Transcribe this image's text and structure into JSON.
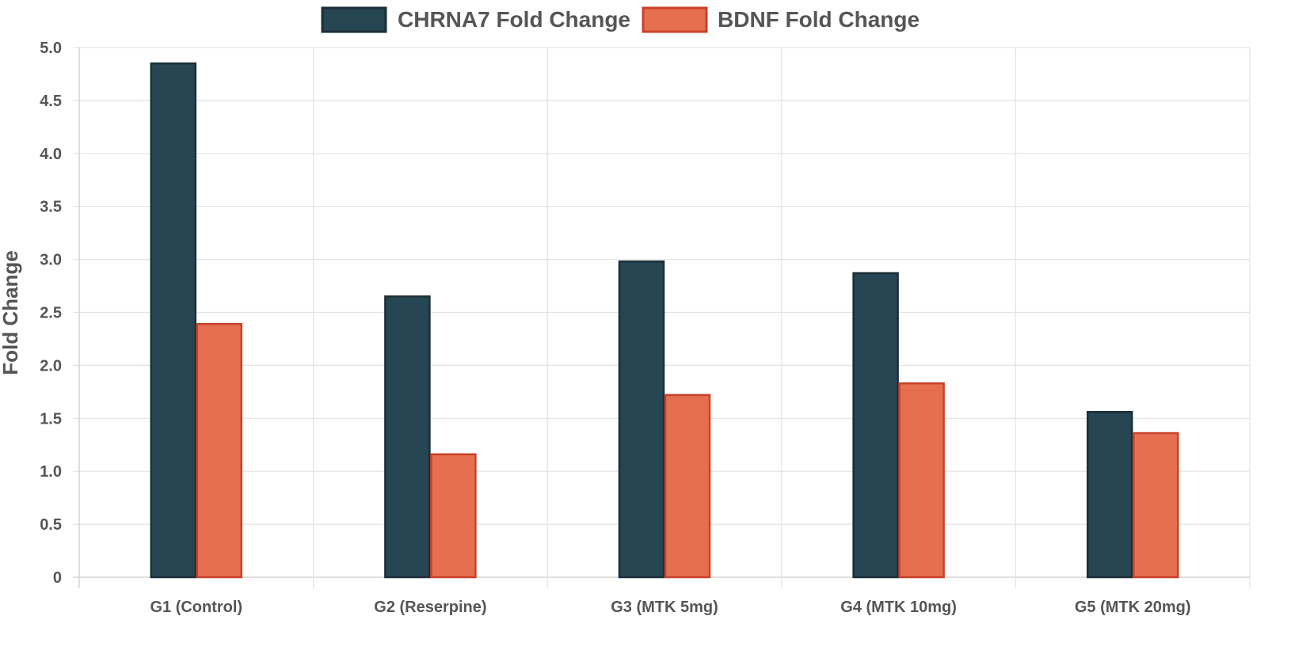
{
  "chart_data": {
    "type": "bar",
    "title": "",
    "xlabel": "",
    "ylabel": "Fold Change",
    "ylim": [
      0,
      5
    ],
    "yticks": [
      "0",
      "0.5",
      "1.0",
      "1.5",
      "2.0",
      "2.5",
      "3.0",
      "3.5",
      "4.0",
      "4.5",
      "5.0"
    ],
    "grid": true,
    "legend_position": "top-center",
    "categories": [
      "G1 (Control)",
      "G2 (Reserpine)",
      "G3 (MTK 5mg)",
      "G4 (MTK 10mg)",
      "G5 (MTK 20mg)"
    ],
    "series": [
      {
        "name": "CHRNA7 Fold Change",
        "values": [
          4.85,
          2.65,
          2.98,
          2.87,
          1.56
        ],
        "color": "#264653",
        "border_color": "#1b2f38"
      },
      {
        "name": "BDNF Fold Change",
        "values": [
          2.39,
          1.16,
          1.72,
          1.83,
          1.36
        ],
        "color": "#e76f51",
        "border_color": "#c8412a"
      }
    ]
  }
}
